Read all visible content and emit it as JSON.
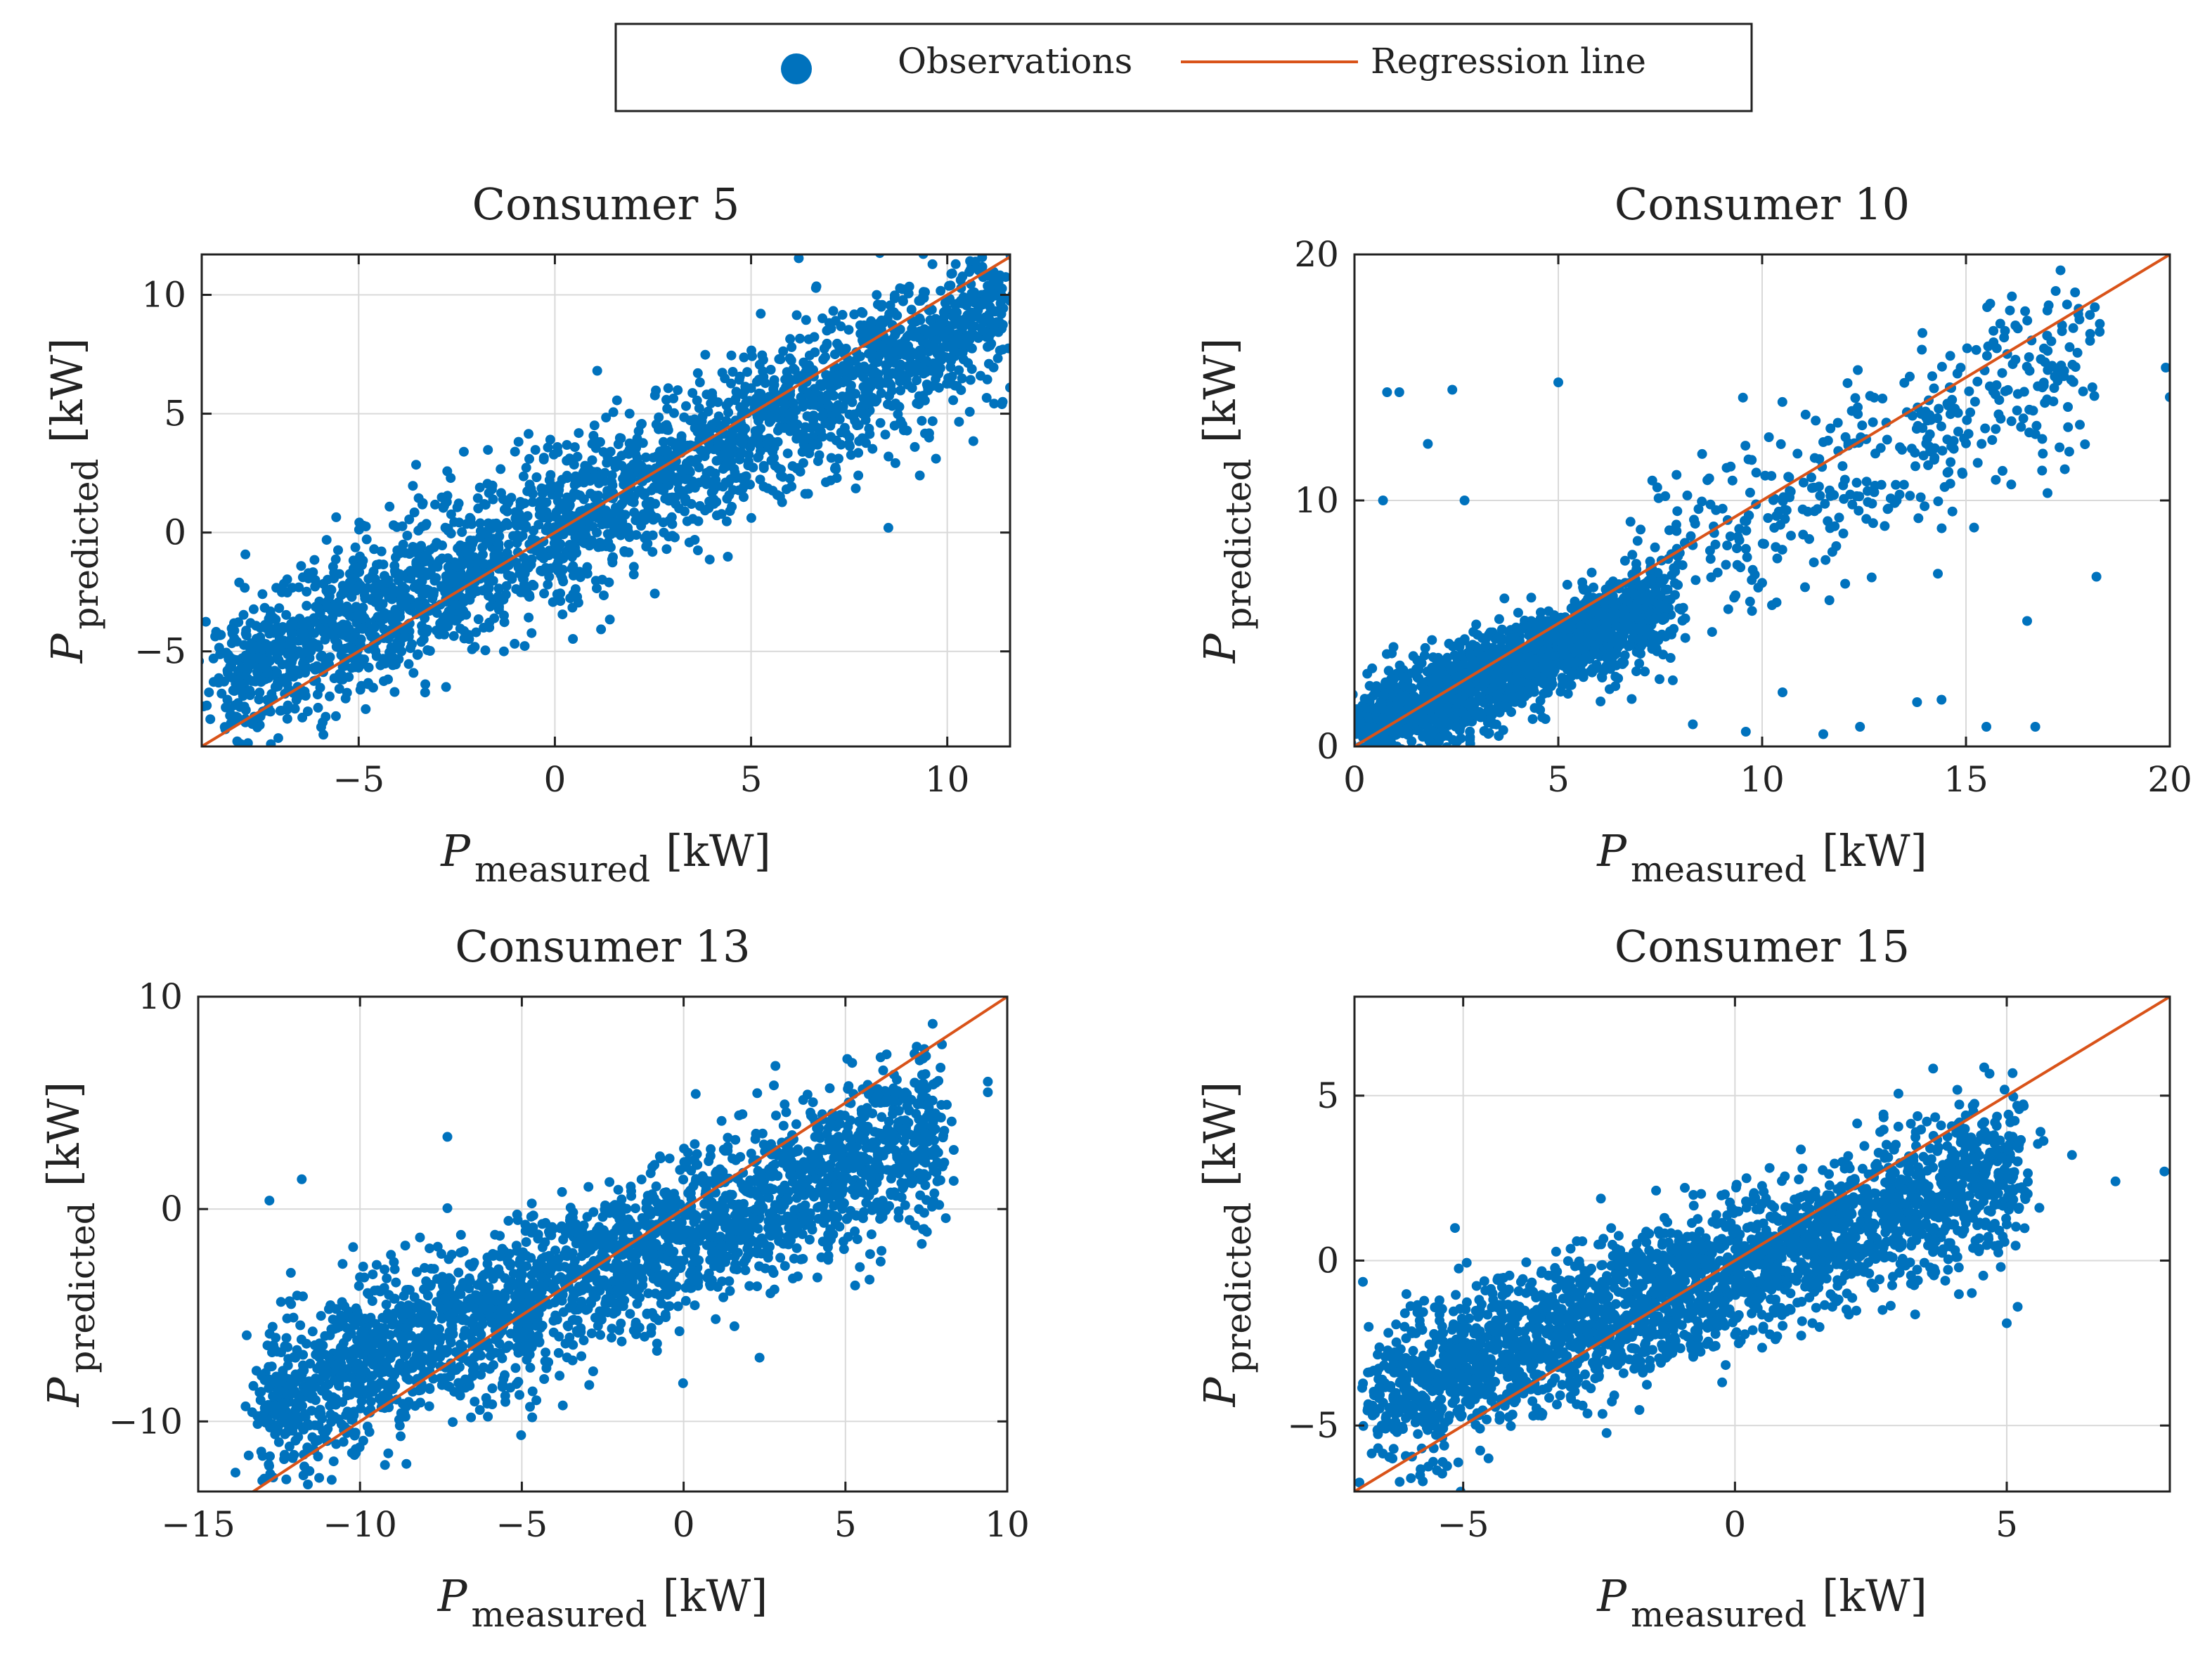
{
  "legend": {
    "observations_label": "Observations",
    "regression_label": "Regression line"
  },
  "colors": {
    "points": "#0072BD",
    "regression": "#D95319",
    "grid": "#d9d9d9",
    "axes": "#222222"
  },
  "chart_data": [
    {
      "type": "scatter",
      "title": "Consumer 5",
      "xlabel": {
        "main": "P",
        "sub": "measured",
        "unit": "[kW]"
      },
      "ylabel": {
        "main": "P",
        "sub": "predicted",
        "unit": "[kW]"
      },
      "xlim": [
        -9,
        11.6
      ],
      "ylim": [
        -9,
        11.7
      ],
      "xticks": [
        -5,
        0,
        5,
        10
      ],
      "xtick_labels": [
        "−5",
        "0",
        "5",
        "10"
      ],
      "yticks": [
        -5,
        0,
        5,
        10
      ],
      "ytick_labels": [
        "−5",
        "0",
        "5",
        "10"
      ],
      "grid": true,
      "regression": {
        "slope": 1,
        "intercept": 0
      },
      "point_cloud": {
        "x_range": [
          -8.5,
          11.6
        ],
        "slope": 0.8,
        "intercept": 0.3,
        "spread": 2.2,
        "count": 2600
      },
      "outliers": [
        [
          11.6,
          6.1
        ],
        [
          10.5,
          7.9
        ],
        [
          10.9,
          8.5
        ],
        [
          -8.7,
          -5.3
        ],
        [
          8.5,
          0.2
        ],
        [
          9.3,
          2.4
        ],
        [
          -1.3,
          -5.0
        ]
      ]
    },
    {
      "type": "scatter",
      "title": "Consumer 10",
      "xlabel": {
        "main": "P",
        "sub": "measured",
        "unit": "[kW]"
      },
      "ylabel": {
        "main": "P",
        "sub": "predicted",
        "unit": "[kW]"
      },
      "xlim": [
        0,
        20
      ],
      "ylim": [
        0,
        20
      ],
      "xticks": [
        0,
        5,
        10,
        15,
        20
      ],
      "xtick_labels": [
        "0",
        "5",
        "10",
        "15",
        "20"
      ],
      "yticks": [
        0,
        10,
        20
      ],
      "ytick_labels": [
        "0",
        "10",
        "20"
      ],
      "grid": true,
      "regression": {
        "slope": 1,
        "intercept": 0
      },
      "point_cloud": {
        "x_range": [
          0,
          7.5
        ],
        "slope": 0.7,
        "intercept": 0.5,
        "spread": 1.2,
        "count": 1800
      },
      "sparse_cloud": {
        "x_range": [
          7,
          18
        ],
        "slope": 0.9,
        "intercept": 0.2,
        "spread": 2.5,
        "count": 420
      },
      "outliers": [
        [
          0.8,
          14.4
        ],
        [
          1.1,
          14.4
        ],
        [
          2.4,
          14.5
        ],
        [
          5,
          14.8
        ],
        [
          1.8,
          12.3
        ],
        [
          0.7,
          10.0
        ],
        [
          2.7,
          10.0
        ],
        [
          15.5,
          0.8
        ],
        [
          16.7,
          0.8
        ],
        [
          12.4,
          0.8
        ],
        [
          18.2,
          6.9
        ],
        [
          20,
          14.2
        ],
        [
          19.9,
          15.4
        ],
        [
          13.8,
          1.8
        ],
        [
          11.5,
          0.5
        ],
        [
          8.3,
          0.9
        ],
        [
          9.6,
          0.6
        ],
        [
          14.4,
          1.9
        ],
        [
          10.5,
          2.2
        ],
        [
          16.5,
          5.1
        ],
        [
          17,
          10.3
        ],
        [
          15.8,
          13.5
        ],
        [
          17.5,
          13.8
        ],
        [
          18.1,
          14.6
        ]
      ]
    },
    {
      "type": "scatter",
      "title": "Consumer 13",
      "xlabel": {
        "main": "P",
        "sub": "measured",
        "unit": "[kW]"
      },
      "ylabel": {
        "main": "P",
        "sub": "predicted",
        "unit": "[kW]"
      },
      "xlim": [
        -15,
        10
      ],
      "ylim": [
        -13.3,
        10
      ],
      "xticks": [
        -15,
        -10,
        -5,
        0,
        5,
        10
      ],
      "xtick_labels": [
        "−15",
        "−10",
        "−5",
        "0",
        "5",
        "10"
      ],
      "yticks": [
        -10,
        0,
        10
      ],
      "ytick_labels": [
        "−10",
        "0",
        "10"
      ],
      "grid": true,
      "regression": {
        "slope": 1,
        "intercept": 0
      },
      "point_cloud": {
        "x_range": [
          -13,
          8
        ],
        "slope": 0.62,
        "intercept": -1.2,
        "spread": 2.6,
        "count": 2600
      },
      "outliers": [
        [
          9.4,
          5.5
        ],
        [
          9.4,
          6.0
        ],
        [
          -11.8,
          1.4
        ],
        [
          -12.8,
          0.4
        ],
        [
          5.3,
          -3.6
        ],
        [
          -7.3,
          3.4
        ]
      ]
    },
    {
      "type": "scatter",
      "title": "Consumer 15",
      "xlabel": {
        "main": "P",
        "sub": "measured",
        "unit": "[kW]"
      },
      "ylabel": {
        "main": "P",
        "sub": "predicted",
        "unit": "[kW]"
      },
      "xlim": [
        -7,
        8
      ],
      "ylim": [
        -7,
        8
      ],
      "xticks": [
        -5,
        0,
        5
      ],
      "xtick_labels": [
        "−5",
        "0",
        "5"
      ],
      "yticks": [
        -5,
        0,
        5
      ],
      "ytick_labels": [
        "−5",
        "0",
        "5"
      ],
      "grid": true,
      "regression": {
        "slope": 1,
        "intercept": 0
      },
      "point_cloud": {
        "x_range": [
          -6.5,
          5.2
        ],
        "slope": 0.6,
        "intercept": -0.3,
        "spread": 1.5,
        "count": 2600
      },
      "outliers": [
        [
          7.9,
          2.7
        ],
        [
          7,
          2.4
        ],
        [
          6.2,
          3.2
        ],
        [
          5.6,
          1.6
        ],
        [
          5.2,
          -1.4
        ],
        [
          5,
          -1.9
        ],
        [
          -6.5,
          -5.0
        ],
        [
          -6.3,
          -6.0
        ]
      ]
    }
  ]
}
